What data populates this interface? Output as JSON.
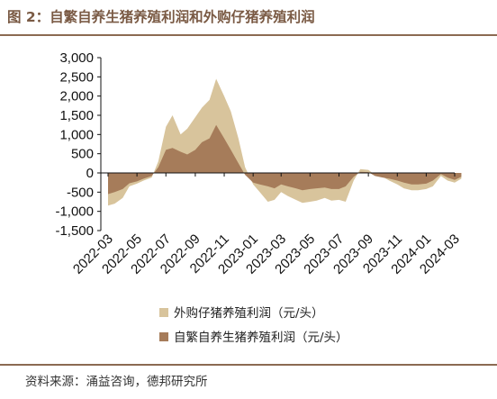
{
  "figure": {
    "title": "图 2：自繁自养生猪养殖利润和外购仔猪养殖利润",
    "source": "资料来源：涌益咨询，德邦研究所"
  },
  "chart_data": {
    "type": "area",
    "ylim": [
      -1500,
      3000
    ],
    "yticks": [
      3000,
      2500,
      2000,
      1500,
      1000,
      500,
      0,
      -500,
      -1000,
      -1500
    ],
    "ytick_labels": [
      "3,000",
      "2,500",
      "2,000",
      "1,500",
      "1,000",
      "500",
      "0",
      "-500",
      "-1,000",
      "-1,500"
    ],
    "xticks": [
      "2022-03",
      "2022-05",
      "2022-07",
      "2022-09",
      "2022-11",
      "2023-01",
      "2023-03",
      "2023-05",
      "2023-07",
      "2023-09",
      "2023-11",
      "2024-01",
      "2024-03"
    ],
    "x": [
      "2022-03-01",
      "2022-03-15",
      "2022-04-01",
      "2022-04-15",
      "2022-05-01",
      "2022-05-15",
      "2022-06-01",
      "2022-06-15",
      "2022-07-01",
      "2022-07-15",
      "2022-08-01",
      "2022-08-15",
      "2022-09-01",
      "2022-09-15",
      "2022-10-01",
      "2022-10-15",
      "2022-11-01",
      "2022-11-15",
      "2022-12-01",
      "2022-12-15",
      "2023-01-01",
      "2023-01-15",
      "2023-02-01",
      "2023-02-15",
      "2023-03-01",
      "2023-03-15",
      "2023-04-01",
      "2023-04-15",
      "2023-05-01",
      "2023-05-15",
      "2023-06-01",
      "2023-06-15",
      "2023-07-01",
      "2023-07-15",
      "2023-08-01",
      "2023-08-15",
      "2023-09-01",
      "2023-09-15",
      "2023-10-01",
      "2023-10-15",
      "2023-11-01",
      "2023-11-15",
      "2023-12-01",
      "2023-12-15",
      "2024-01-01",
      "2024-01-15",
      "2024-02-01",
      "2024-02-15",
      "2024-03-01",
      "2024-03-15"
    ],
    "legend_position": "bottom",
    "series": [
      {
        "name": "外购仔猪养殖利润（元/头）",
        "color": "#d8c49c",
        "values": [
          -850,
          -800,
          -650,
          -350,
          -280,
          -200,
          -120,
          300,
          1200,
          1500,
          1000,
          1150,
          1450,
          1700,
          1900,
          2450,
          2000,
          1600,
          900,
          150,
          -300,
          -500,
          -750,
          -700,
          -500,
          -600,
          -700,
          -780,
          -750,
          -720,
          -650,
          -720,
          -700,
          -750,
          -200,
          100,
          80,
          -50,
          -100,
          -200,
          -300,
          -400,
          -450,
          -450,
          -420,
          -350,
          -80,
          -200,
          -250,
          -150
        ]
      },
      {
        "name": "自繁自养生猪养殖利润（元/头）",
        "color": "#a67c5a",
        "values": [
          -550,
          -500,
          -420,
          -270,
          -220,
          -150,
          -80,
          150,
          600,
          650,
          550,
          480,
          600,
          800,
          900,
          1250,
          900,
          600,
          250,
          -50,
          -250,
          -300,
          -350,
          -400,
          -300,
          -350,
          -400,
          -450,
          -420,
          -400,
          -380,
          -420,
          -420,
          -350,
          -100,
          30,
          20,
          -80,
          -120,
          -150,
          -200,
          -250,
          -300,
          -300,
          -280,
          -200,
          -30,
          -120,
          -180,
          -100
        ]
      }
    ]
  }
}
